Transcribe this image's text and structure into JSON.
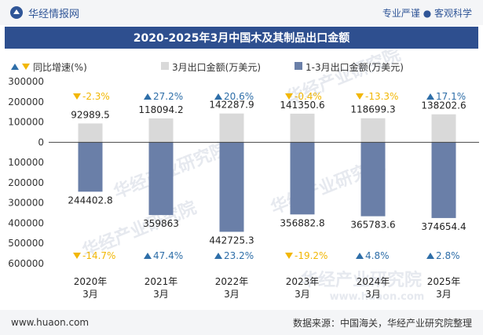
{
  "header": {
    "brand": "华经情报网",
    "tagline": "专业严谨 ● 客观科学"
  },
  "title": "2020-2025年3月中国木及其制品出口金额",
  "footer": {
    "url": "www.huaon.com",
    "source": "数据来源：中国海关，华经产业研究院整理"
  },
  "watermark": "华经产业研究院",
  "watermark_url": "www.huaon.com",
  "colors": {
    "march_bar": "#d9d9d9",
    "cumulative_bar": "#6a7fa8",
    "up": "#2e6ea8",
    "down": "#f2b705",
    "title_bg": "#2e4f8f"
  },
  "chart_data": {
    "type": "bar",
    "categories": [
      "2020年\n3月",
      "2021年\n3月",
      "2022年\n3月",
      "2023年\n3月",
      "2024年\n3月",
      "2025年\n3月"
    ],
    "legend": [
      {
        "key": "growth",
        "label": "同比增速(%)"
      },
      {
        "key": "march",
        "label": "3月出口金额(万美元)"
      },
      {
        "key": "cumulative",
        "label": "1-3月出口金额(万美元)"
      }
    ],
    "series": [
      {
        "name": "3月出口金额(万美元)",
        "values": [
          92989.5,
          118094.2,
          142287.9,
          141350.6,
          118699.3,
          138202.6
        ],
        "labels": [
          "92989.5",
          "118094.2",
          "142287.9",
          "141350.6",
          "118699.3",
          "138202.6"
        ]
      },
      {
        "name": "1-3月出口金额(万美元)",
        "values": [
          -244402.8,
          -359863,
          -442725.3,
          -356882.8,
          -365783.6,
          -374654.4
        ],
        "labels": [
          "244402.8",
          "359863",
          "442725.3",
          "356882.8",
          "365783.6",
          "374654.4"
        ]
      }
    ],
    "growth_march": [
      -2.3,
      27.2,
      20.6,
      -0.4,
      -13.3,
      17.1
    ],
    "growth_march_labels": [
      "-2.3%",
      "27.2%",
      "20.6%",
      "-0.4%",
      "-13.3%",
      "17.1%"
    ],
    "growth_cumulative": [
      -14.7,
      47.4,
      23.2,
      -19.2,
      4.8,
      2.8
    ],
    "growth_cumulative_labels": [
      "-14.7%",
      "47.4%",
      "23.2%",
      "-19.2%",
      "4.8%",
      "2.8%"
    ],
    "yticks": [
      300000,
      200000,
      100000,
      0,
      -100000,
      -200000,
      -300000,
      -400000,
      -500000,
      -600000
    ],
    "ytick_labels": [
      "300000",
      "200000",
      "100000",
      "0",
      "100000",
      "200000",
      "300000",
      "400000",
      "500000",
      "600000"
    ],
    "ylim": [
      -600000,
      300000
    ],
    "grid": false,
    "legend_position": "top-left"
  }
}
